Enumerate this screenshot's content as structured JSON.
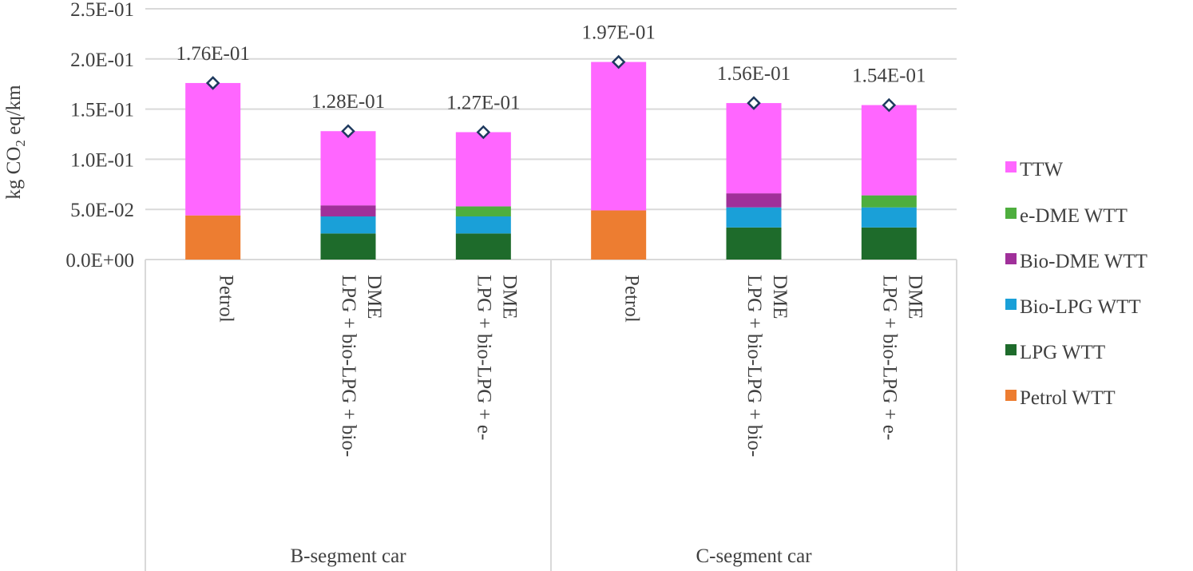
{
  "chart_data": {
    "type": "bar",
    "stacked": true,
    "ylabel": "kg CO2 eq/km",
    "ylabel_main": "kg CO",
    "ylabel_sub": "2",
    "ylabel_rest": " eq/km",
    "ylim": [
      0,
      0.25
    ],
    "yticks": [
      0,
      0.05,
      0.1,
      0.15,
      0.2,
      0.25
    ],
    "ytick_labels": [
      "0.0E+00",
      "5.0E-02",
      "1.0E-01",
      "1.5E-01",
      "2.0E-01",
      "2.5E-01"
    ],
    "grid": true,
    "legend_position": "right",
    "groups": [
      "B-segment car",
      "C-segment car"
    ],
    "categories": [
      {
        "group": 0,
        "lines": [
          "Petrol"
        ]
      },
      {
        "group": 0,
        "lines": [
          "LPG + bio-LPG + bio-",
          "DME"
        ]
      },
      {
        "group": 0,
        "lines": [
          "LPG + bio-LPG + e-",
          "DME"
        ]
      },
      {
        "group": 1,
        "lines": [
          "Petrol"
        ]
      },
      {
        "group": 1,
        "lines": [
          "LPG + bio-LPG + bio-",
          "DME"
        ]
      },
      {
        "group": 1,
        "lines": [
          "LPG + bio-LPG + e-",
          "DME"
        ]
      }
    ],
    "series": [
      {
        "name": "Petrol WTT",
        "color": "#ED7D31",
        "values": [
          0.044,
          0,
          0,
          0.049,
          0,
          0
        ]
      },
      {
        "name": "LPG WTT",
        "color": "#1E6B2B",
        "values": [
          0,
          0.026,
          0.026,
          0,
          0.032,
          0.032
        ]
      },
      {
        "name": "Bio-LPG WTT",
        "color": "#1AA0D8",
        "values": [
          0,
          0.017,
          0.017,
          0,
          0.02,
          0.02
        ]
      },
      {
        "name": "Bio-DME WTT",
        "color": "#A0309A",
        "values": [
          0,
          0.011,
          0,
          0,
          0.014,
          0
        ]
      },
      {
        "name": "e-DME WTT",
        "color": "#4EAE3E",
        "values": [
          0,
          0,
          0.01,
          0,
          0,
          0.012
        ]
      },
      {
        "name": "TTW",
        "color": "#FF66FF",
        "values": [
          0.132,
          0.074,
          0.074,
          0.148,
          0.09,
          0.09
        ]
      }
    ],
    "totals": [
      0.176,
      0.128,
      0.127,
      0.197,
      0.156,
      0.154
    ],
    "total_labels": [
      "1.76E-01",
      "1.28E-01",
      "1.27E-01",
      "1.97E-01",
      "1.56E-01",
      "1.54E-01"
    ],
    "legend_order": [
      "TTW",
      "e-DME WTT",
      "Bio-DME WTT",
      "Bio-LPG WTT",
      "LPG WTT",
      "Petrol WTT"
    ]
  }
}
